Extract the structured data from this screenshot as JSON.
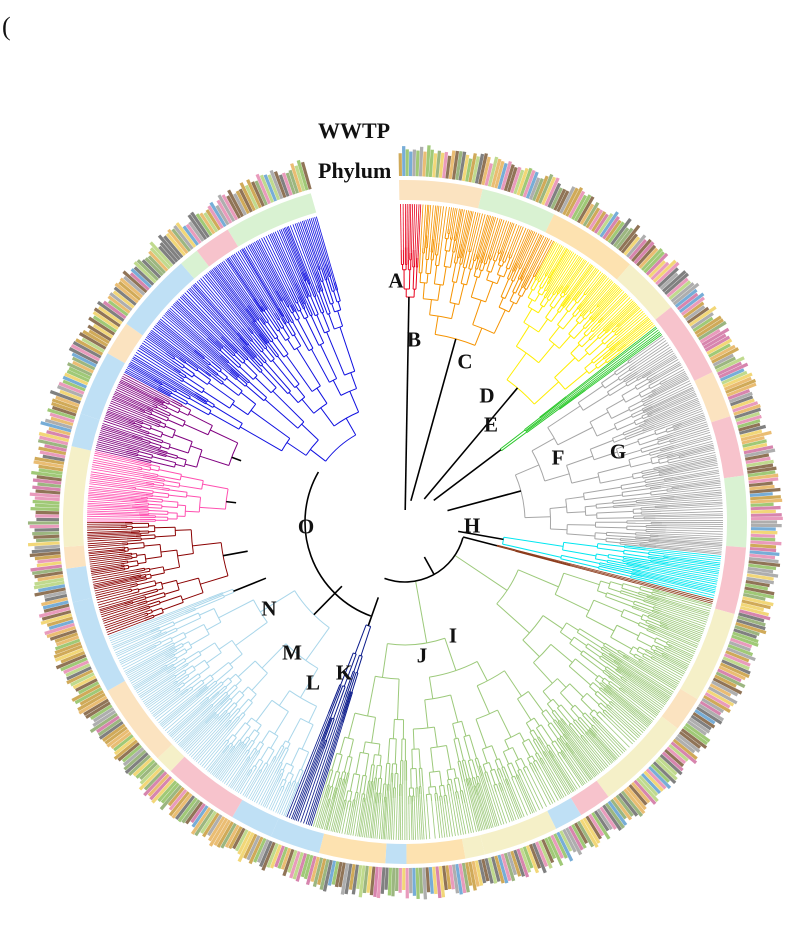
{
  "panel_mark": "(",
  "ring_labels": {
    "outer": "WWTP",
    "inner": "Phylum"
  },
  "colors": {
    "stem": "#000000",
    "ring_white": "#ffffff",
    "phylum_palette": [
      "#fde2b0",
      "#f7c3cc",
      "#bfe0f5",
      "#d9f2d2",
      "#fbe3c0",
      "#f5f0c8"
    ],
    "wwtp_palette": [
      "#c89b3c",
      "#8ba96a",
      "#d070a0",
      "#5f9fd0",
      "#e6b25a",
      "#6a6a6a",
      "#b5d37a",
      "#e58ab0",
      "#8fbf5f",
      "#a0a0a0",
      "#7c5c3a",
      "#f0d060"
    ]
  },
  "clades": [
    {
      "id": "A",
      "label": "A",
      "color": "#e8001c",
      "start": -1,
      "end": 3
    },
    {
      "id": "B",
      "label": "B",
      "color": "#f59300",
      "start": 3,
      "end": 28
    },
    {
      "id": "C",
      "label": "C",
      "color": "#ffee00",
      "start": 28,
      "end": 52
    },
    {
      "id": "D",
      "label": "D",
      "color": "#28c828",
      "start": 52,
      "end": 54
    },
    {
      "id": "E",
      "label": "E",
      "color": "#a6a6a6",
      "start": 54,
      "end": 96
    },
    {
      "id": "F",
      "label": "F",
      "color": "#00e6f0",
      "start": 96,
      "end": 104
    },
    {
      "id": "G",
      "label": "G",
      "color": "#8b3a1a",
      "start": 104,
      "end": 105
    },
    {
      "id": "H",
      "label": "H",
      "color": "#9cc97a",
      "start": 105,
      "end": 197
    },
    {
      "id": "I",
      "label": "I",
      "color": "#0a1a8a",
      "start": 197,
      "end": 202
    },
    {
      "id": "J",
      "label": "J",
      "color": "#a9d6ea",
      "start": 202,
      "end": 247
    },
    {
      "id": "K",
      "label": "K",
      "color": "#a9d6ea",
      "start": 247,
      "end": 249
    },
    {
      "id": "L",
      "label": "L",
      "color": "#8a0000",
      "start": 249,
      "end": 270
    },
    {
      "id": "M",
      "label": "M",
      "color": "#ff4fb0",
      "start": 270,
      "end": 283
    },
    {
      "id": "N",
      "label": "N",
      "color": "#800080",
      "start": 283,
      "end": 298
    },
    {
      "id": "O",
      "label": "O",
      "color": "#1010e0",
      "start": 298,
      "end": 344
    }
  ]
}
